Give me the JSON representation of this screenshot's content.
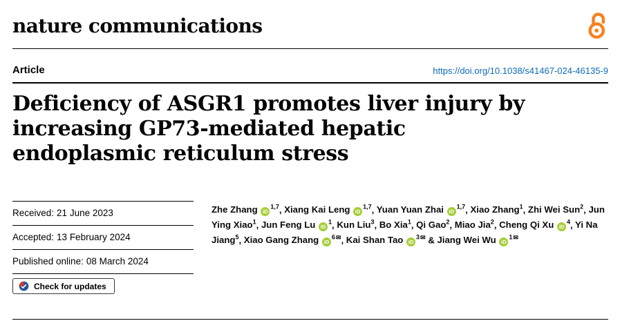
{
  "journal": {
    "name": "nature communications"
  },
  "article": {
    "type_label": "Article",
    "doi_link": "https://doi.org/10.1038/s41467-024-46135-9",
    "title_lines": [
      "Deficiency of ASGR1 promotes liver injury by",
      "increasing GP73-mediated hepatic",
      "endoplasmic reticulum stress"
    ]
  },
  "history": {
    "rows": [
      {
        "label": "Received:",
        "value": "21 June 2023"
      },
      {
        "label": "Accepted:",
        "value": "13 February 2024"
      },
      {
        "label": "Published online:",
        "value": "08 March 2024"
      }
    ]
  },
  "crossmark": {
    "label": "Check for updates"
  },
  "authors": {
    "separator": ", ",
    "last_separator": " & ",
    "list": [
      {
        "name": "Zhe Zhang",
        "orcid": true,
        "sup": "1,7",
        "mail": false
      },
      {
        "name": "Xiang Kai Leng",
        "orcid": true,
        "sup": "1,7",
        "mail": false
      },
      {
        "name": "Yuan Yuan Zhai",
        "orcid": true,
        "sup": "1,7",
        "mail": false
      },
      {
        "name": "Xiao Zhang",
        "orcid": false,
        "sup": "1",
        "mail": false
      },
      {
        "name": "Zhi Wei Sun",
        "orcid": false,
        "sup": "2",
        "mail": false
      },
      {
        "name": "Jun Ying Xiao",
        "orcid": false,
        "sup": "1",
        "mail": false
      },
      {
        "name": "Jun Feng Lu",
        "orcid": true,
        "sup": "1",
        "mail": false
      },
      {
        "name": "Kun Liu",
        "orcid": false,
        "sup": "3",
        "mail": false
      },
      {
        "name": "Bo Xia",
        "orcid": false,
        "sup": "1",
        "mail": false
      },
      {
        "name": "Qi Gao",
        "orcid": false,
        "sup": "2",
        "mail": false
      },
      {
        "name": "Miao Jia",
        "orcid": false,
        "sup": "2",
        "mail": false
      },
      {
        "name": "Cheng Qi Xu",
        "orcid": true,
        "sup": "4",
        "mail": false
      },
      {
        "name": "Yi Na Jiang",
        "orcid": false,
        "sup": "5",
        "mail": false
      },
      {
        "name": "Xiao Gang Zhang",
        "orcid": true,
        "sup": "6",
        "mail": true
      },
      {
        "name": "Kai Shan Tao",
        "orcid": true,
        "sup": "3",
        "mail": true
      },
      {
        "name": "Jiang Wei Wu",
        "orcid": true,
        "sup": "1",
        "mail": true
      }
    ]
  },
  "icons": {
    "open_access": "open-access-padlock-icon",
    "crossmark": "crossmark-check-icon",
    "orcid": "orcid-id-icon",
    "mail": "envelope-icon"
  },
  "colors": {
    "link_blue": "#0c6bb8",
    "orcid_green": "#A6CE39",
    "open_access_orange": "#F58220",
    "rule_black": "#000000"
  }
}
